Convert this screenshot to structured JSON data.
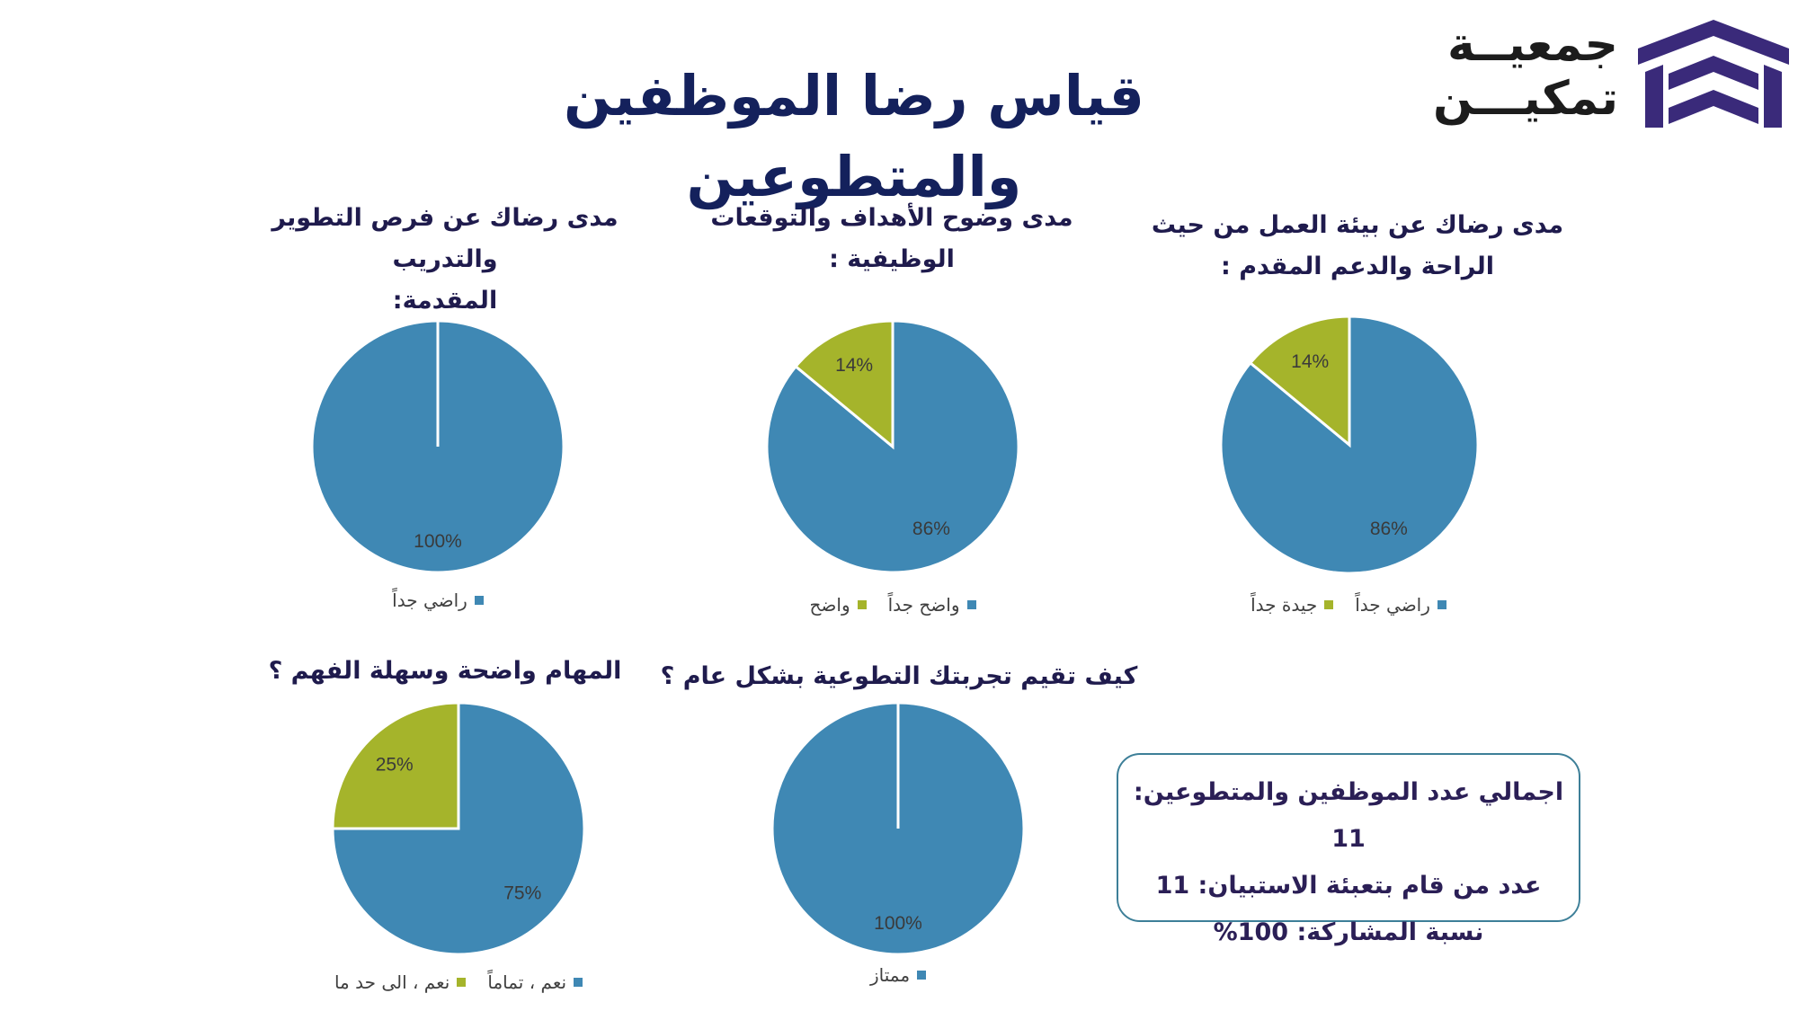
{
  "logo": {
    "line1": "جمعيــة",
    "line2": "تمكيـــن"
  },
  "title": "قياس رضا الموظفين والمتطوعين",
  "colors": {
    "blue": "#3f88b4",
    "green": "#a5b42b",
    "navy": "#14215c",
    "logo_purple": "#3a2a7a"
  },
  "stats": {
    "line1": "اجمالي عدد الموظفين والمتطوعين: 11",
    "line2": "عدد من قام بتعبئة الاستبيان: 11",
    "line3": "نسبة المشاركة:   100%"
  },
  "chart_data": [
    {
      "type": "pie",
      "title_line1": "مدى رضاك عن بيئة العمل من حيث",
      "title_line2": "الراحة والدعم المقدم :",
      "slices": [
        {
          "label": "راضي جداً",
          "value": 86,
          "display": "86%",
          "color": "#3f88b4"
        },
        {
          "label": "جيدة جداً",
          "value": 14,
          "display": "14%",
          "color": "#a5b42b"
        }
      ]
    },
    {
      "type": "pie",
      "title_line1": "مدى وضوح الأهداف والتوقعات",
      "title_line2": "الوظيفية :",
      "slices": [
        {
          "label": "واضح جداً",
          "value": 86,
          "display": "86%",
          "color": "#3f88b4"
        },
        {
          "label": "واضح",
          "value": 14,
          "display": "14%",
          "color": "#a5b42b"
        }
      ]
    },
    {
      "type": "pie",
      "title_line1": "مدى رضاك عن فرص التطوير والتدريب",
      "title_line2": "المقدمة:",
      "slices": [
        {
          "label": "راضي جداً",
          "value": 100,
          "display": "100%",
          "color": "#3f88b4"
        }
      ]
    },
    {
      "type": "pie",
      "title_line1": "كيف تقيم تجربتك التطوعية بشكل عام ؟",
      "title_line2": "",
      "slices": [
        {
          "label": "ممتاز",
          "value": 100,
          "display": "100%",
          "color": "#3f88b4"
        }
      ]
    },
    {
      "type": "pie",
      "title_line1": "المهام واضحة وسهلة الفهم ؟",
      "title_line2": "",
      "slices": [
        {
          "label": "نعم ، تماماً",
          "value": 75,
          "display": "75%",
          "color": "#3f88b4"
        },
        {
          "label": "نعم ، الى حد ما",
          "value": 25,
          "display": "25%",
          "color": "#a5b42b"
        }
      ]
    }
  ]
}
